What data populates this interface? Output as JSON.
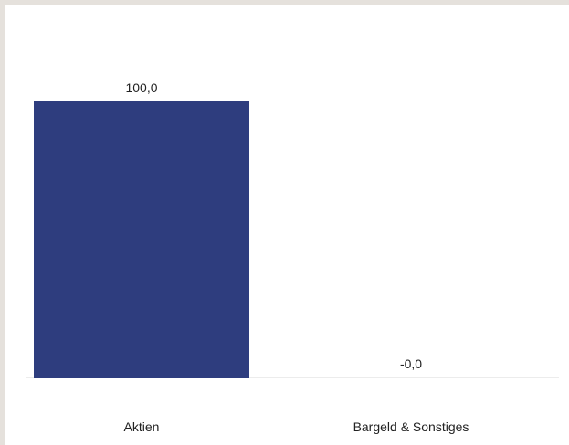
{
  "chart_data": {
    "type": "bar",
    "categories": [
      "Aktien",
      "Bargeld & Sonstiges"
    ],
    "values": [
      100.0,
      -0.0
    ],
    "data_labels": [
      "100,0",
      "-0,0"
    ],
    "title": "",
    "xlabel": "",
    "ylabel": "",
    "ylim": [
      0,
      100
    ],
    "grid": false,
    "colors": {
      "bar": "#2e3d7e",
      "baseline": "#d9d9d9",
      "text": "#222222",
      "frame_border": "#e5e1dc"
    }
  }
}
